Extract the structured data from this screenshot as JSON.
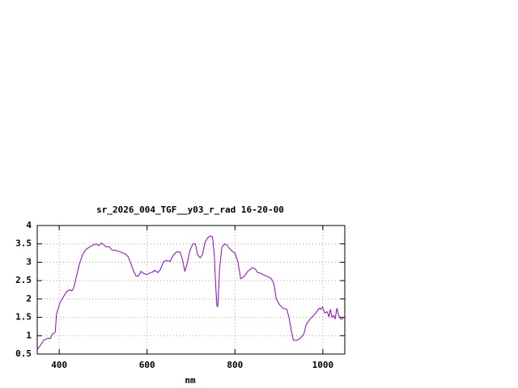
{
  "chart_data": {
    "type": "line",
    "title": "sr_2026_004_TGF__y03_r_rad 16-20-00",
    "xlabel": "nm",
    "x": [
      350,
      358,
      365,
      374,
      380,
      385,
      391,
      394,
      402,
      409,
      417,
      424,
      429,
      433,
      439,
      446,
      453,
      461,
      470,
      479,
      485,
      490,
      496,
      501,
      507,
      514,
      520,
      529,
      542,
      551,
      557,
      562,
      568,
      575,
      581,
      586,
      592,
      599,
      605,
      612,
      617,
      625,
      630,
      638,
      645,
      652,
      660,
      667,
      675,
      680,
      686,
      691,
      697,
      704,
      710,
      715,
      721,
      726,
      732,
      739,
      745,
      749,
      753,
      756,
      759,
      761,
      765,
      770,
      776,
      781,
      787,
      794,
      800,
      807,
      813,
      820,
      829,
      839,
      846,
      852,
      859,
      866,
      876,
      883,
      889,
      894,
      901,
      909,
      918,
      923,
      929,
      933,
      940,
      949,
      957,
      962,
      971,
      979,
      986,
      992,
      995,
      999,
      1004,
      1010,
      1014,
      1017,
      1021,
      1025,
      1028,
      1032,
      1036,
      1041,
      1047
    ],
    "values": [
      0.62,
      0.75,
      0.88,
      0.93,
      0.93,
      1.05,
      1.1,
      1.6,
      1.9,
      2.05,
      2.2,
      2.25,
      2.22,
      2.3,
      2.6,
      2.95,
      3.2,
      3.35,
      3.42,
      3.48,
      3.5,
      3.45,
      3.52,
      3.48,
      3.42,
      3.42,
      3.33,
      3.32,
      3.27,
      3.22,
      3.15,
      3.0,
      2.8,
      2.62,
      2.63,
      2.75,
      2.7,
      2.66,
      2.7,
      2.73,
      2.78,
      2.72,
      2.8,
      3.02,
      3.05,
      3.02,
      3.2,
      3.28,
      3.28,
      3.1,
      2.75,
      2.95,
      3.3,
      3.5,
      3.5,
      3.2,
      3.12,
      3.2,
      3.55,
      3.68,
      3.72,
      3.68,
      3.2,
      2.4,
      1.8,
      1.8,
      2.8,
      3.4,
      3.5,
      3.48,
      3.38,
      3.3,
      3.25,
      3.0,
      2.55,
      2.6,
      2.75,
      2.85,
      2.82,
      2.72,
      2.7,
      2.65,
      2.6,
      2.55,
      2.4,
      2.0,
      1.85,
      1.75,
      1.72,
      1.5,
      1.1,
      0.88,
      0.87,
      0.93,
      1.05,
      1.3,
      1.45,
      1.55,
      1.65,
      1.75,
      1.72,
      1.78,
      1.62,
      1.65,
      1.52,
      1.72,
      1.5,
      1.55,
      1.45,
      1.75,
      1.55,
      1.45,
      1.47
    ],
    "color": "#9400d3",
    "xlim": [
      350,
      1050
    ],
    "ylim": [
      0.5,
      4
    ],
    "xticks": [
      400,
      600,
      800,
      1000
    ],
    "yticks": [
      0.5,
      1,
      1.5,
      2,
      2.5,
      3,
      3.5,
      4
    ],
    "grid": true
  }
}
